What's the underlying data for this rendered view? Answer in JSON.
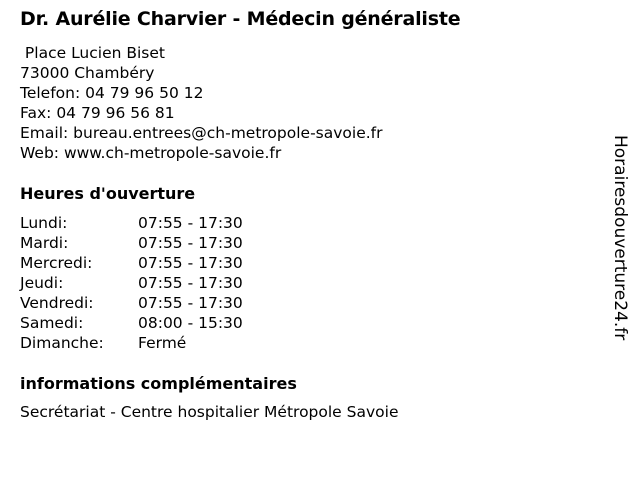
{
  "title": "Dr. Aurélie Charvier - Médecin généraliste",
  "contact": {
    "street": " Place Lucien Biset",
    "city": "73000 Chambéry",
    "phone": "Telefon: 04 79 96 50 12",
    "fax": "Fax: 04 79 96 56 81",
    "email": "Email: bureau.entrees@ch-metropole-savoie.fr",
    "web": "Web: www.ch-metropole-savoie.fr"
  },
  "hours_heading": "Heures d'ouverture",
  "hours": [
    {
      "day": "Lundi:",
      "time": "07:55 - 17:30"
    },
    {
      "day": "Mardi:",
      "time": "07:55 - 17:30"
    },
    {
      "day": "Mercredi:",
      "time": "07:55 - 17:30"
    },
    {
      "day": "Jeudi:",
      "time": "07:55 - 17:30"
    },
    {
      "day": "Vendredi:",
      "time": "07:55 - 17:30"
    },
    {
      "day": "Samedi:",
      "time": "08:00 - 15:30"
    },
    {
      "day": "Dimanche:",
      "time": "Fermé"
    }
  ],
  "extra_heading": "informations complémentaires",
  "extra_text": "Secrétariat - Centre hospitalier Métropole Savoie",
  "watermark": "Horairesdouverture24.fr"
}
